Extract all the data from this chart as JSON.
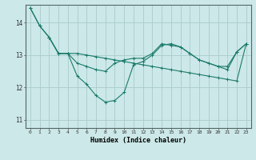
{
  "xlabel": "Humidex (Indice chaleur)",
  "background_color": "#cce8e8",
  "grid_color": "#aacccc",
  "line_color": "#1a7a6a",
  "xlim": [
    -0.5,
    23.5
  ],
  "ylim": [
    10.75,
    14.55
  ],
  "yticks": [
    11,
    12,
    13,
    14
  ],
  "xticks": [
    0,
    1,
    2,
    3,
    4,
    5,
    6,
    7,
    8,
    9,
    10,
    11,
    12,
    13,
    14,
    15,
    16,
    17,
    18,
    19,
    20,
    21,
    22,
    23
  ],
  "line1_x": [
    0,
    1,
    2,
    3,
    4,
    5,
    6,
    7,
    8,
    9,
    10,
    11,
    12,
    13,
    14,
    15,
    16,
    17,
    18,
    19,
    20,
    21,
    22,
    23
  ],
  "line1_y": [
    14.45,
    13.9,
    13.55,
    13.05,
    13.05,
    12.35,
    12.1,
    11.75,
    11.55,
    11.6,
    11.85,
    12.7,
    12.8,
    13.0,
    13.3,
    13.35,
    13.25,
    13.05,
    12.85,
    12.75,
    12.65,
    12.55,
    13.1,
    13.35
  ],
  "line2_x": [
    0,
    1,
    2,
    3,
    4,
    5,
    6,
    7,
    8,
    9,
    10,
    11,
    12,
    13,
    14,
    15,
    16,
    17,
    18,
    19,
    20,
    21,
    22,
    23
  ],
  "line2_y": [
    14.45,
    13.9,
    13.55,
    13.05,
    13.05,
    13.05,
    13.0,
    12.95,
    12.9,
    12.85,
    12.8,
    12.75,
    12.7,
    12.65,
    12.6,
    12.55,
    12.5,
    12.45,
    12.4,
    12.35,
    12.3,
    12.25,
    12.2,
    13.35
  ],
  "line3_x": [
    2,
    3,
    4,
    5,
    6,
    7,
    8,
    9,
    10,
    11,
    12,
    13,
    14,
    15,
    16,
    17,
    18,
    19,
    20,
    21,
    22,
    23
  ],
  "line3_y": [
    13.55,
    13.05,
    13.05,
    12.75,
    12.65,
    12.55,
    12.5,
    12.75,
    12.85,
    12.9,
    12.9,
    13.05,
    13.35,
    13.3,
    13.25,
    13.05,
    12.85,
    12.75,
    12.65,
    12.65,
    13.1,
    13.35
  ]
}
